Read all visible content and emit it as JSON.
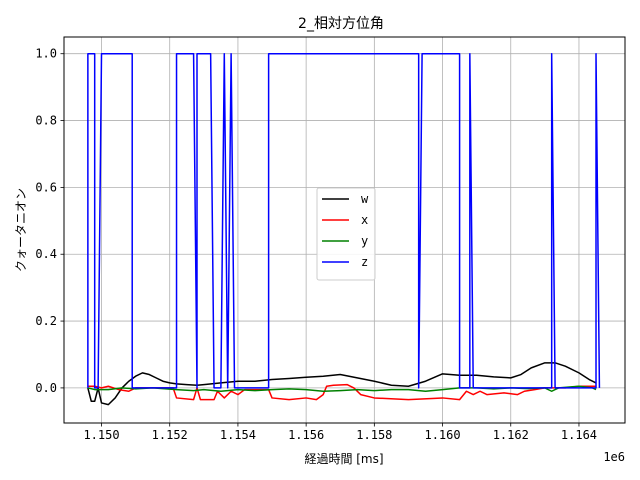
{
  "chart_data": {
    "type": "line",
    "title": "2_相対方位角",
    "xlabel": "経過時間 [ms]",
    "ylabel": "クォータニオン",
    "x_offset_label": "1e6",
    "xlim": [
      1.1489,
      1.16535
    ],
    "ylim": [
      -0.105,
      1.05
    ],
    "x_scale_factor": 1000000,
    "x_ticks": [
      1.15,
      1.152,
      1.154,
      1.156,
      1.158,
      1.16,
      1.162,
      1.164
    ],
    "x_tick_labels": [
      "1.150",
      "1.152",
      "1.154",
      "1.156",
      "1.158",
      "1.160",
      "1.162",
      "1.164"
    ],
    "y_ticks": [
      0.0,
      0.2,
      0.4,
      0.6,
      0.8,
      1.0
    ],
    "y_tick_labels": [
      "0.0",
      "0.2",
      "0.4",
      "0.6",
      "0.8",
      "1.0"
    ],
    "grid": true,
    "legend_position": "center",
    "series": [
      {
        "name": "w",
        "color": "#000000",
        "points": [
          [
            1.1496,
            0.0
          ],
          [
            1.1497,
            -0.04
          ],
          [
            1.1498,
            -0.04
          ],
          [
            1.1499,
            0.0
          ],
          [
            1.15,
            -0.045
          ],
          [
            1.1502,
            -0.05
          ],
          [
            1.1504,
            -0.03
          ],
          [
            1.1506,
            0.0
          ],
          [
            1.1508,
            0.02
          ],
          [
            1.151,
            0.035
          ],
          [
            1.1512,
            0.045
          ],
          [
            1.1514,
            0.04
          ],
          [
            1.1516,
            0.03
          ],
          [
            1.1518,
            0.02
          ],
          [
            1.152,
            0.015
          ],
          [
            1.1522,
            0.012
          ],
          [
            1.1525,
            0.01
          ],
          [
            1.1528,
            0.008
          ],
          [
            1.153,
            0.01
          ],
          [
            1.1535,
            0.015
          ],
          [
            1.154,
            0.02
          ],
          [
            1.1545,
            0.02
          ],
          [
            1.155,
            0.025
          ],
          [
            1.1555,
            0.028
          ],
          [
            1.156,
            0.032
          ],
          [
            1.1565,
            0.035
          ],
          [
            1.157,
            0.04
          ],
          [
            1.1575,
            0.03
          ],
          [
            1.158,
            0.02
          ],
          [
            1.1585,
            0.008
          ],
          [
            1.159,
            0.005
          ],
          [
            1.1595,
            0.02
          ],
          [
            1.16,
            0.042
          ],
          [
            1.1605,
            0.038
          ],
          [
            1.161,
            0.038
          ],
          [
            1.1615,
            0.033
          ],
          [
            1.162,
            0.03
          ],
          [
            1.1623,
            0.04
          ],
          [
            1.1626,
            0.06
          ],
          [
            1.163,
            0.075
          ],
          [
            1.1633,
            0.075
          ],
          [
            1.1636,
            0.065
          ],
          [
            1.164,
            0.045
          ],
          [
            1.1643,
            0.025
          ],
          [
            1.1645,
            0.015
          ]
        ]
      },
      {
        "name": "x",
        "color": "#ff0000",
        "points": [
          [
            1.1496,
            0.005
          ],
          [
            1.1498,
            0.005
          ],
          [
            1.15,
            0.0
          ],
          [
            1.1502,
            0.005
          ],
          [
            1.1505,
            -0.005
          ],
          [
            1.1508,
            -0.01
          ],
          [
            1.151,
            0.0
          ],
          [
            1.1521,
            0.0
          ],
          [
            1.1522,
            -0.03
          ],
          [
            1.1527,
            -0.035
          ],
          [
            1.1528,
            0.0
          ],
          [
            1.1529,
            -0.035
          ],
          [
            1.1533,
            -0.035
          ],
          [
            1.1534,
            -0.01
          ],
          [
            1.1536,
            -0.03
          ],
          [
            1.1538,
            -0.01
          ],
          [
            1.154,
            -0.02
          ],
          [
            1.1542,
            -0.005
          ],
          [
            1.1549,
            -0.005
          ],
          [
            1.155,
            -0.03
          ],
          [
            1.1555,
            -0.035
          ],
          [
            1.156,
            -0.03
          ],
          [
            1.1563,
            -0.035
          ],
          [
            1.1565,
            -0.02
          ],
          [
            1.1566,
            0.005
          ],
          [
            1.1568,
            0.008
          ],
          [
            1.1572,
            0.01
          ],
          [
            1.1574,
            0.0
          ],
          [
            1.1576,
            -0.02
          ],
          [
            1.158,
            -0.03
          ],
          [
            1.159,
            -0.035
          ],
          [
            1.16,
            -0.03
          ],
          [
            1.1605,
            -0.035
          ],
          [
            1.1607,
            -0.01
          ],
          [
            1.1609,
            -0.02
          ],
          [
            1.1611,
            -0.01
          ],
          [
            1.1613,
            -0.02
          ],
          [
            1.1618,
            -0.015
          ],
          [
            1.1622,
            -0.02
          ],
          [
            1.1624,
            -0.01
          ],
          [
            1.1627,
            -0.005
          ],
          [
            1.163,
            0.0
          ],
          [
            1.1636,
            0.0
          ],
          [
            1.164,
            0.005
          ],
          [
            1.1645,
            0.005
          ]
        ]
      },
      {
        "name": "y",
        "color": "#008000",
        "points": [
          [
            1.1496,
            0.0
          ],
          [
            1.1498,
            -0.005
          ],
          [
            1.1502,
            -0.005
          ],
          [
            1.1506,
            0.0
          ],
          [
            1.151,
            -0.003
          ],
          [
            1.1515,
            0.0
          ],
          [
            1.1522,
            -0.005
          ],
          [
            1.1527,
            -0.008
          ],
          [
            1.153,
            -0.005
          ],
          [
            1.1535,
            -0.01
          ],
          [
            1.154,
            -0.005
          ],
          [
            1.1545,
            -0.008
          ],
          [
            1.155,
            -0.005
          ],
          [
            1.1555,
            -0.003
          ],
          [
            1.156,
            -0.005
          ],
          [
            1.1565,
            -0.01
          ],
          [
            1.157,
            -0.008
          ],
          [
            1.1575,
            -0.005
          ],
          [
            1.158,
            -0.008
          ],
          [
            1.1585,
            -0.005
          ],
          [
            1.159,
            -0.005
          ],
          [
            1.1595,
            -0.01
          ],
          [
            1.16,
            -0.005
          ],
          [
            1.1605,
            0.0
          ],
          [
            1.161,
            0.0
          ],
          [
            1.1615,
            -0.003
          ],
          [
            1.162,
            0.0
          ],
          [
            1.1625,
            -0.002
          ],
          [
            1.163,
            0.0
          ],
          [
            1.1632,
            -0.01
          ],
          [
            1.1634,
            0.0
          ],
          [
            1.164,
            0.005
          ],
          [
            1.1644,
            0.0
          ],
          [
            1.1645,
            -0.005
          ]
        ]
      },
      {
        "name": "z",
        "color": "#0000ff",
        "points": [
          [
            1.1496,
            0.0
          ],
          [
            1.1496,
            1.0
          ],
          [
            1.1498,
            1.0
          ],
          [
            1.1498,
            0.0
          ],
          [
            1.1499,
            0.0
          ],
          [
            1.15,
            1.0
          ],
          [
            1.1509,
            1.0
          ],
          [
            1.1509,
            0.0
          ],
          [
            1.1522,
            0.0
          ],
          [
            1.1522,
            1.0
          ],
          [
            1.1527,
            1.0
          ],
          [
            1.1528,
            0.0
          ],
          [
            1.1528,
            1.0
          ],
          [
            1.1532,
            1.0
          ],
          [
            1.1533,
            0.0
          ],
          [
            1.1535,
            0.0
          ],
          [
            1.1536,
            1.0
          ],
          [
            1.1537,
            0.0
          ],
          [
            1.1538,
            1.0
          ],
          [
            1.1539,
            0.0
          ],
          [
            1.1549,
            0.0
          ],
          [
            1.1549,
            1.0
          ],
          [
            1.1593,
            1.0
          ],
          [
            1.1593,
            0.0
          ],
          [
            1.1594,
            1.0
          ],
          [
            1.1605,
            1.0
          ],
          [
            1.1605,
            0.0
          ],
          [
            1.1608,
            0.0
          ],
          [
            1.1608,
            1.0
          ],
          [
            1.1609,
            0.0
          ],
          [
            1.1632,
            0.0
          ],
          [
            1.1632,
            1.0
          ],
          [
            1.1633,
            0.0
          ],
          [
            1.1645,
            0.0
          ],
          [
            1.1645,
            1.0
          ],
          [
            1.1646,
            0.0
          ]
        ]
      }
    ]
  }
}
